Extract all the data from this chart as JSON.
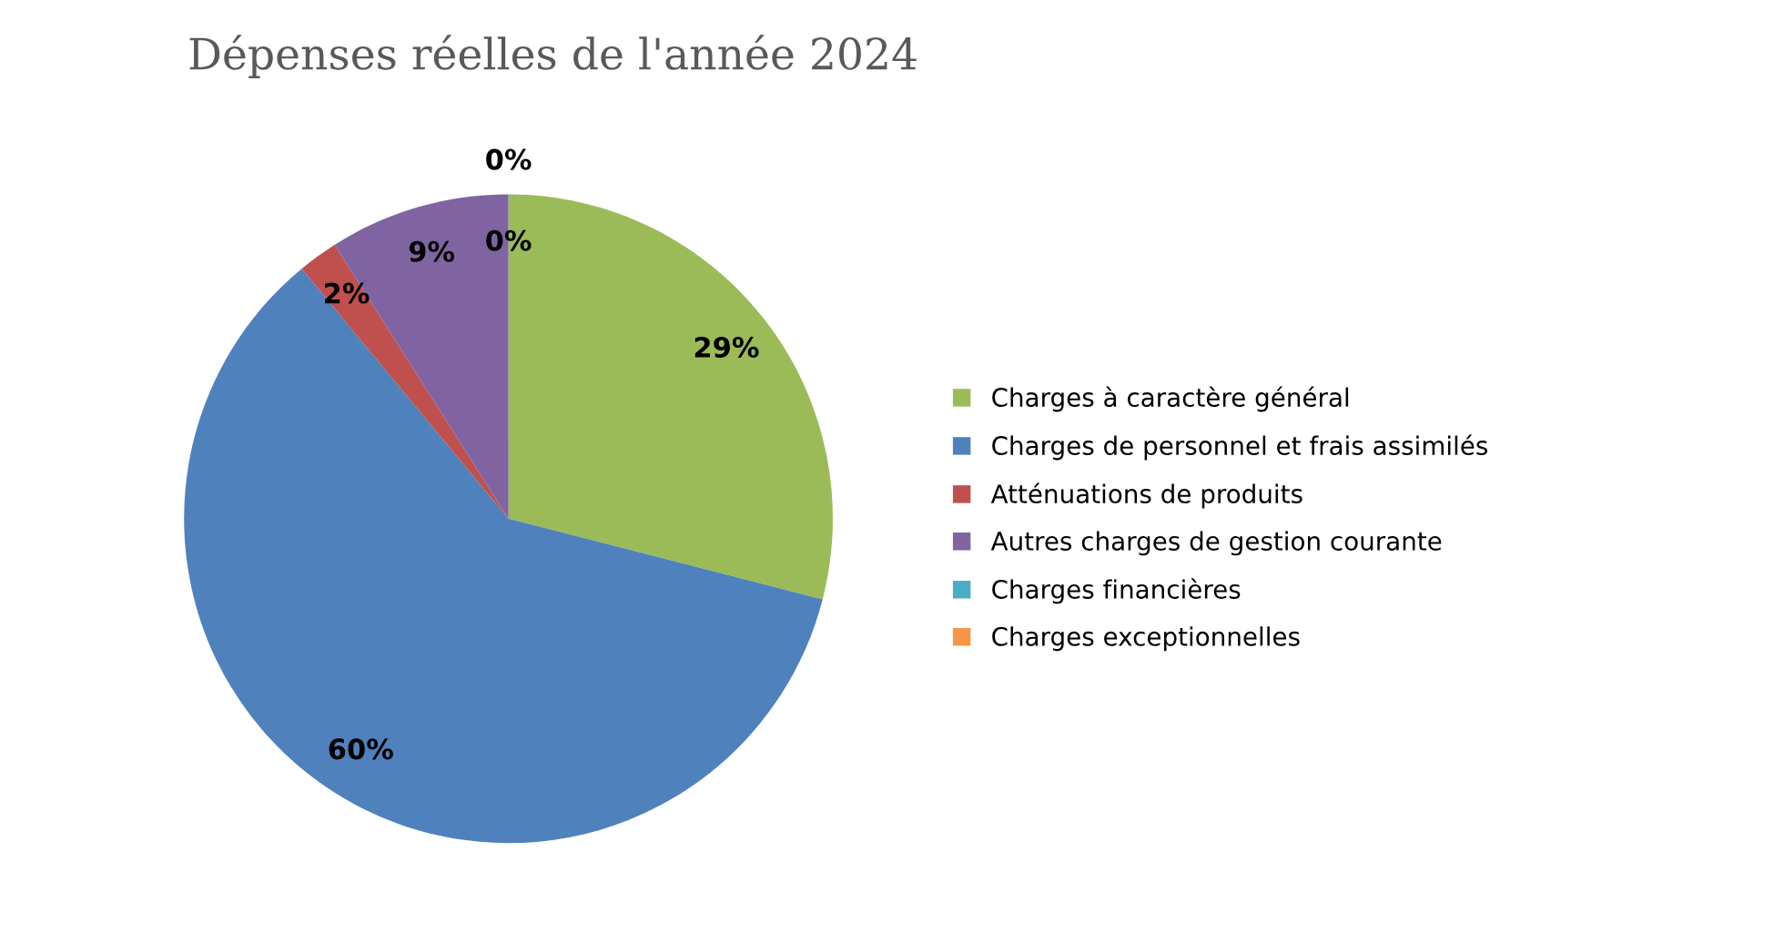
{
  "chart_data": {
    "type": "pie",
    "title": "Dépenses réelles de l'année 2024",
    "categories": [
      "Charges à caractère général",
      "Charges de personnel et frais assimilés",
      "Atténuations de produits",
      "Autres charges de gestion courante",
      "Charges financières",
      "Charges exceptionnelles"
    ],
    "values": [
      29,
      60,
      2,
      9,
      0,
      0
    ],
    "colors": [
      "#9bbb59",
      "#4f81bd",
      "#c0504d",
      "#8064a2",
      "#4bacc6",
      "#f79646"
    ],
    "value_labels": [
      "29%",
      "60%",
      "2%",
      "9%",
      "0%",
      "0%"
    ],
    "legend": "right"
  }
}
